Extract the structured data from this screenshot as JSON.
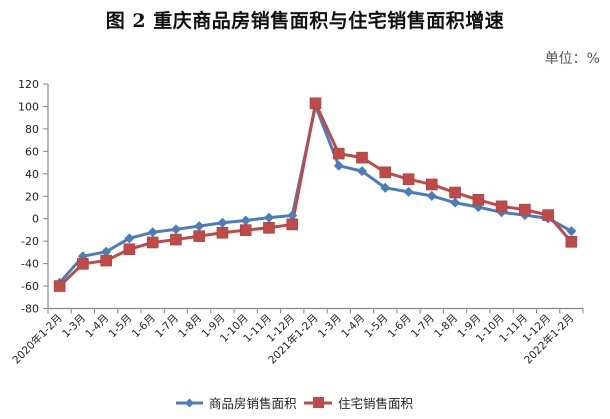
{
  "title": "图 2    重庆商品房销售面积与住宅销售面积增速",
  "unit_label": "单位：%",
  "colors": {
    "series1": "#4A7EBB",
    "series2": "#BE4B48",
    "axis": "#868686"
  },
  "chart_data": {
    "type": "line",
    "title": "图 2 重庆商品房销售面积与住宅销售面积增速",
    "xlabel": "",
    "ylabel": "单位：%",
    "ylim": [
      -80,
      120
    ],
    "yticks": [
      120,
      100,
      80,
      60,
      40,
      20,
      0,
      -20,
      -40,
      -60,
      -80
    ],
    "grid": false,
    "legend_position": "bottom",
    "categories": [
      "2020年1-2月",
      "1-3月",
      "1-4月",
      "1-5月",
      "1-6月",
      "1-7月",
      "1-8月",
      "1-9月",
      "1-10月",
      "1-11月",
      "1-12月",
      "2021年1-2月",
      "1-3月",
      "1-4月",
      "1-5月",
      "1-6月",
      "1-7月",
      "1-8月",
      "1-9月",
      "1-10月",
      "1-11月",
      "1-12月",
      "2022年1-2月"
    ],
    "series": [
      {
        "name": "商品房销售面积",
        "marker": "diamond",
        "color": "#4A7EBB",
        "values": [
          -57.1,
          -33.5,
          -29.4,
          -17.5,
          -12.1,
          -9.5,
          -6.6,
          -3.6,
          -1.6,
          1.0,
          2.9,
          100.4,
          47.2,
          42.4,
          27.5,
          23.9,
          20.3,
          14.3,
          10.3,
          5.7,
          3.2,
          0.3,
          -11.1
        ]
      },
      {
        "name": "住宅销售面积",
        "marker": "square",
        "color": "#BE4B48",
        "values": [
          -60.0,
          -40.2,
          -37.3,
          -27.2,
          -21.2,
          -18.6,
          -15.5,
          -12.5,
          -10.2,
          -8.1,
          -5.1,
          102.8,
          58.0,
          54.4,
          41.3,
          35.2,
          30.5,
          23.3,
          16.8,
          11.0,
          8.1,
          3.2,
          -20.6
        ]
      }
    ]
  },
  "legend": [
    {
      "label": "商品房销售面积"
    },
    {
      "label": "住宅销售面积"
    }
  ]
}
